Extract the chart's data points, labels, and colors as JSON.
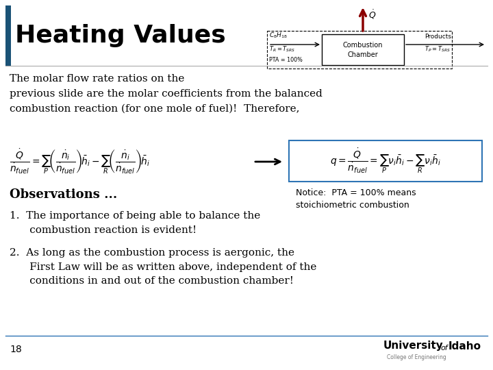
{
  "title": "Heating Values",
  "background_color": "#ffffff",
  "left_bar_color": "#1a5276",
  "title_fontsize": 26,
  "body_text_1": "The molar flow rate ratios on the\nprevious slide are the molar coefficients from the balanced\ncombustion reaction (for one mole of fuel)!  Therefore,",
  "observations_label": "Observations ...",
  "notice_text": "Notice:  PTA = 100% means\nstoichiometric combustion",
  "page_number": "18",
  "footer_line_color": "#2e74b5",
  "college_text": "College of Engineering"
}
